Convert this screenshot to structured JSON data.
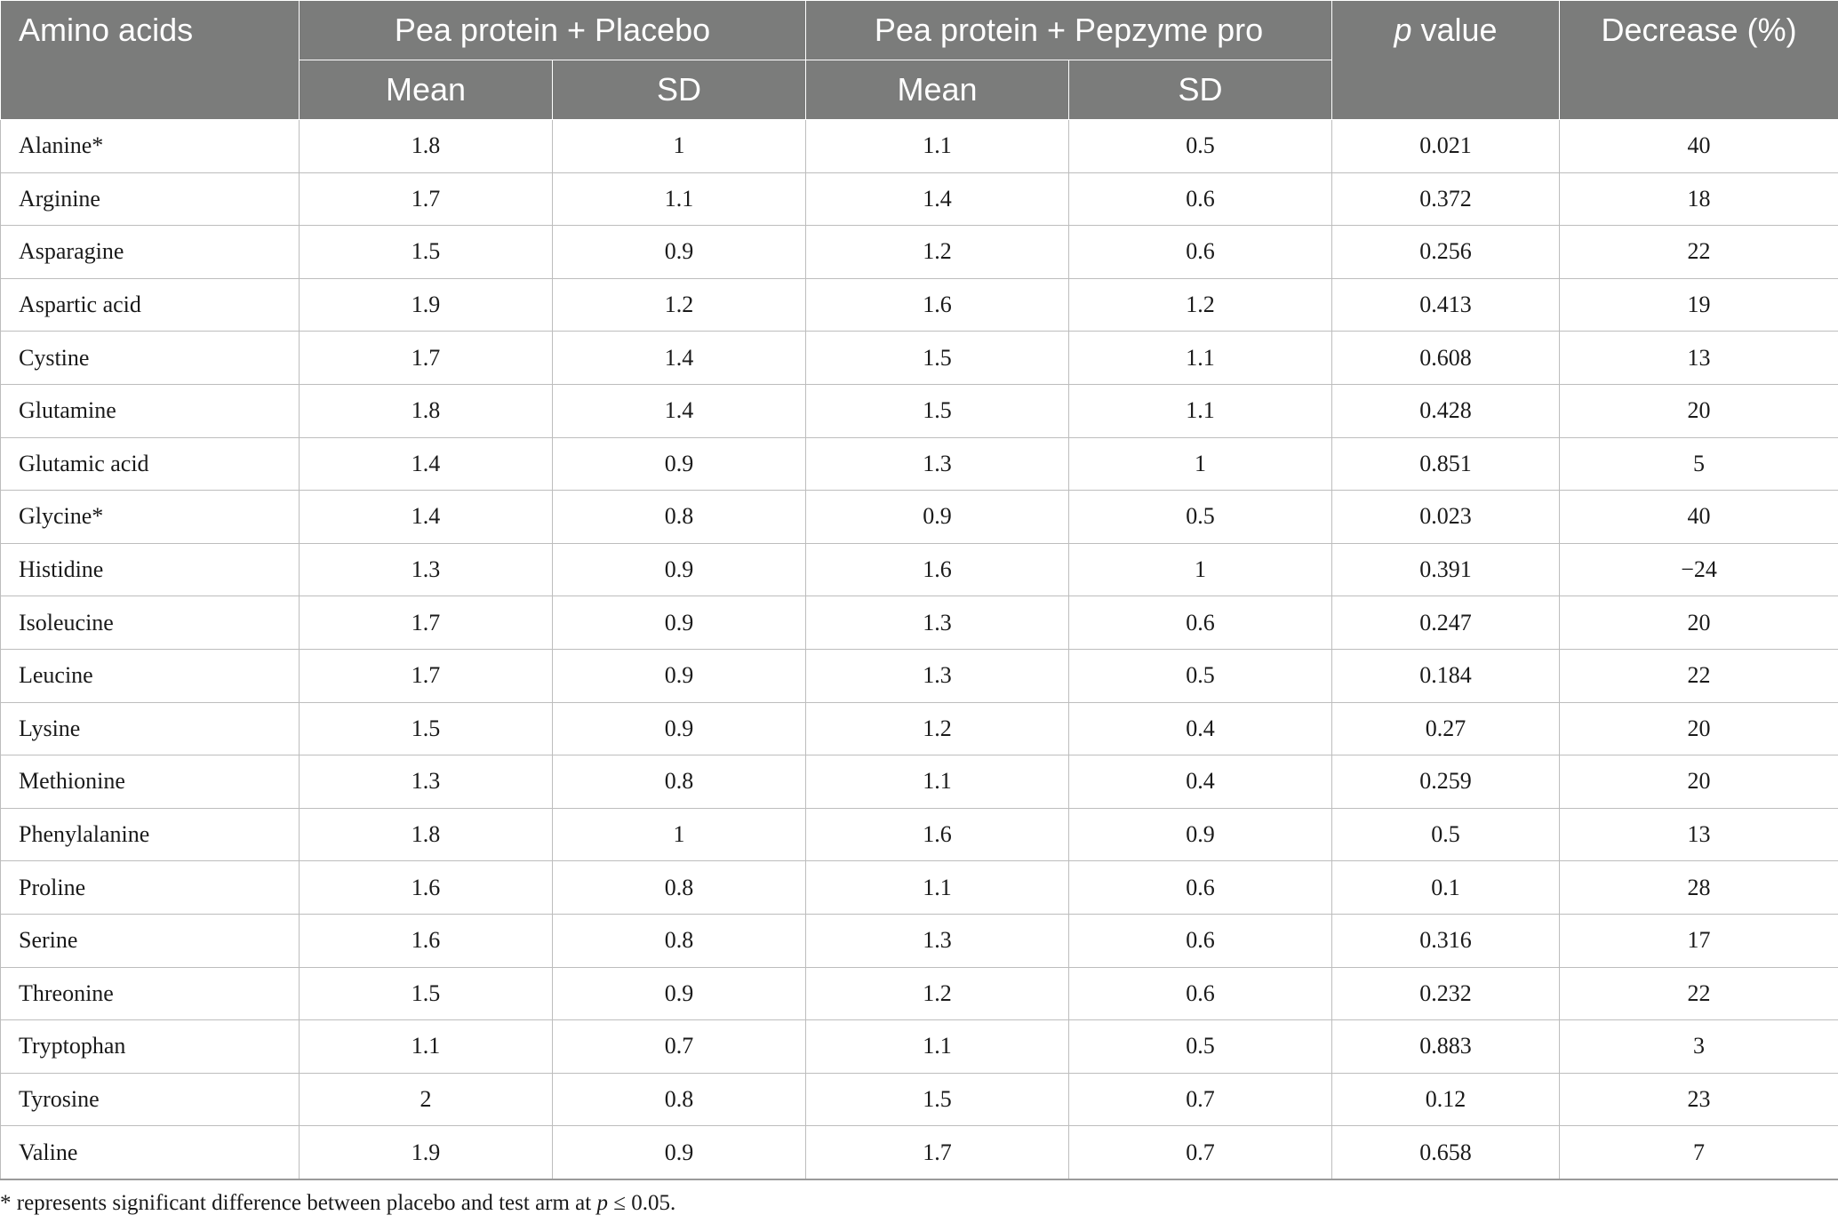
{
  "table": {
    "header": {
      "amino_acids": "Amino acids",
      "group_placebo": "Pea protein + Placebo",
      "group_pepzyme": "Pea protein + Pepzyme pro",
      "p_italic": "p",
      "p_rest": " value",
      "decrease": "Decrease (%)",
      "mean_1": "Mean",
      "sd_1": "SD",
      "mean_2": "Mean",
      "sd_2": "SD"
    },
    "rows": [
      {
        "name": "Alanine*",
        "placebo_mean": "1.8",
        "placebo_sd": "1",
        "pepzyme_mean": "1.1",
        "pepzyme_sd": "0.5",
        "p_value": "0.021",
        "decrease": "40"
      },
      {
        "name": "Arginine",
        "placebo_mean": "1.7",
        "placebo_sd": "1.1",
        "pepzyme_mean": "1.4",
        "pepzyme_sd": "0.6",
        "p_value": "0.372",
        "decrease": "18"
      },
      {
        "name": "Asparagine",
        "placebo_mean": "1.5",
        "placebo_sd": "0.9",
        "pepzyme_mean": "1.2",
        "pepzyme_sd": "0.6",
        "p_value": "0.256",
        "decrease": "22"
      },
      {
        "name": "Aspartic acid",
        "placebo_mean": "1.9",
        "placebo_sd": "1.2",
        "pepzyme_mean": "1.6",
        "pepzyme_sd": "1.2",
        "p_value": "0.413",
        "decrease": "19"
      },
      {
        "name": "Cystine",
        "placebo_mean": "1.7",
        "placebo_sd": "1.4",
        "pepzyme_mean": "1.5",
        "pepzyme_sd": "1.1",
        "p_value": "0.608",
        "decrease": "13"
      },
      {
        "name": "Glutamine",
        "placebo_mean": "1.8",
        "placebo_sd": "1.4",
        "pepzyme_mean": "1.5",
        "pepzyme_sd": "1.1",
        "p_value": "0.428",
        "decrease": "20"
      },
      {
        "name": "Glutamic acid",
        "placebo_mean": "1.4",
        "placebo_sd": "0.9",
        "pepzyme_mean": "1.3",
        "pepzyme_sd": "1",
        "p_value": "0.851",
        "decrease": "5"
      },
      {
        "name": "Glycine*",
        "placebo_mean": "1.4",
        "placebo_sd": "0.8",
        "pepzyme_mean": "0.9",
        "pepzyme_sd": "0.5",
        "p_value": "0.023",
        "decrease": "40"
      },
      {
        "name": "Histidine",
        "placebo_mean": "1.3",
        "placebo_sd": "0.9",
        "pepzyme_mean": "1.6",
        "pepzyme_sd": "1",
        "p_value": "0.391",
        "decrease": "−24"
      },
      {
        "name": "Isoleucine",
        "placebo_mean": "1.7",
        "placebo_sd": "0.9",
        "pepzyme_mean": "1.3",
        "pepzyme_sd": "0.6",
        "p_value": "0.247",
        "decrease": "20"
      },
      {
        "name": "Leucine",
        "placebo_mean": "1.7",
        "placebo_sd": "0.9",
        "pepzyme_mean": "1.3",
        "pepzyme_sd": "0.5",
        "p_value": "0.184",
        "decrease": "22"
      },
      {
        "name": "Lysine",
        "placebo_mean": "1.5",
        "placebo_sd": "0.9",
        "pepzyme_mean": "1.2",
        "pepzyme_sd": "0.4",
        "p_value": "0.27",
        "decrease": "20"
      },
      {
        "name": "Methionine",
        "placebo_mean": "1.3",
        "placebo_sd": "0.8",
        "pepzyme_mean": "1.1",
        "pepzyme_sd": "0.4",
        "p_value": "0.259",
        "decrease": "20"
      },
      {
        "name": "Phenylalanine",
        "placebo_mean": "1.8",
        "placebo_sd": "1",
        "pepzyme_mean": "1.6",
        "pepzyme_sd": "0.9",
        "p_value": "0.5",
        "decrease": "13"
      },
      {
        "name": "Proline",
        "placebo_mean": "1.6",
        "placebo_sd": "0.8",
        "pepzyme_mean": "1.1",
        "pepzyme_sd": "0.6",
        "p_value": "0.1",
        "decrease": "28"
      },
      {
        "name": "Serine",
        "placebo_mean": "1.6",
        "placebo_sd": "0.8",
        "pepzyme_mean": "1.3",
        "pepzyme_sd": "0.6",
        "p_value": "0.316",
        "decrease": "17"
      },
      {
        "name": "Threonine",
        "placebo_mean": "1.5",
        "placebo_sd": "0.9",
        "pepzyme_mean": "1.2",
        "pepzyme_sd": "0.6",
        "p_value": "0.232",
        "decrease": "22"
      },
      {
        "name": "Tryptophan",
        "placebo_mean": "1.1",
        "placebo_sd": "0.7",
        "pepzyme_mean": "1.1",
        "pepzyme_sd": "0.5",
        "p_value": "0.883",
        "decrease": "3"
      },
      {
        "name": "Tyrosine",
        "placebo_mean": "2",
        "placebo_sd": "0.8",
        "pepzyme_mean": "1.5",
        "pepzyme_sd": "0.7",
        "p_value": "0.12",
        "decrease": "23"
      },
      {
        "name": "Valine",
        "placebo_mean": "1.9",
        "placebo_sd": "0.9",
        "pepzyme_mean": "1.7",
        "pepzyme_sd": "0.7",
        "p_value": "0.658",
        "decrease": "7"
      }
    ]
  },
  "footnote": {
    "prefix": "* represents significant difference between placebo and test arm at ",
    "p_italic": "p",
    "suffix": " ≤ 0.05."
  },
  "colors": {
    "header_bg": "#7b7c7b",
    "header_text": "#ffffff",
    "grid_line": "#bdbdbd"
  }
}
